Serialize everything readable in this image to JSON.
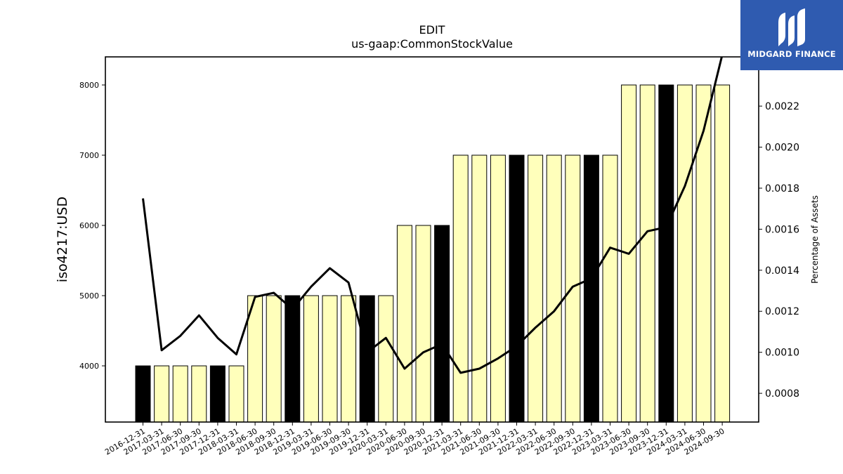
{
  "chart_data": {
    "type": "bar",
    "title": "EDIT",
    "subtitle": "us-gaap:CommonStockValue",
    "ylabel": "iso4217:USD",
    "y2label": "Percentage of Assets",
    "ylim": [
      3200,
      8400
    ],
    "y2lim": [
      0.00066,
      0.00244
    ],
    "yticks": [
      4000,
      5000,
      6000,
      7000,
      8000
    ],
    "y2ticks": [
      "0.0008",
      "0.0010",
      "0.0012",
      "0.0014",
      "0.0016",
      "0.0018",
      "0.0020",
      "0.0022"
    ],
    "categories": [
      "2016-12-31",
      "2017-03-31",
      "2017-06-30",
      "2017-09-30",
      "2017-12-31",
      "2018-03-31",
      "2018-06-30",
      "2018-09-30",
      "2018-12-31",
      "2019-03-31",
      "2019-06-30",
      "2019-09-30",
      "2019-12-31",
      "2020-03-31",
      "2020-06-30",
      "2020-09-30",
      "2020-12-31",
      "2021-03-31",
      "2021-06-30",
      "2021-09-30",
      "2021-12-31",
      "2022-03-31",
      "2022-06-30",
      "2022-09-30",
      "2022-12-31",
      "2023-03-31",
      "2023-06-30",
      "2023-09-30",
      "2023-12-31",
      "2024-03-31",
      "2024-06-30",
      "2024-09-30"
    ],
    "series": [
      {
        "values": [
          4000,
          4000,
          4000,
          4000,
          4000,
          4000,
          5000,
          5000,
          5000,
          5000,
          5000,
          5000,
          5000,
          5000,
          6000,
          6000,
          6000,
          7000,
          7000,
          7000,
          7000,
          7000,
          7000,
          7000,
          7000,
          7000,
          8000,
          8000,
          8000,
          8000,
          8000,
          8000
        ],
        "annual": [
          true,
          false,
          false,
          false,
          true,
          false,
          false,
          false,
          true,
          false,
          false,
          false,
          true,
          false,
          false,
          false,
          true,
          false,
          false,
          false,
          true,
          false,
          false,
          false,
          true,
          false,
          false,
          false,
          true,
          false,
          false,
          false
        ]
      },
      {
        "axis": "secondary",
        "values": [
          0.00175,
          0.00101,
          0.00108,
          0.00118,
          0.00107,
          0.00099,
          0.00127,
          0.00129,
          0.00121,
          0.00132,
          0.00141,
          0.00134,
          0.001,
          0.00107,
          0.00092,
          0.001,
          0.00104,
          0.0009,
          0.00092,
          0.00097,
          0.00103,
          0.00112,
          0.0012,
          0.00132,
          0.00136,
          0.00151,
          0.00148,
          0.00159,
          0.00161,
          0.00181,
          0.00208,
          0.00245
        ]
      }
    ],
    "colors": {
      "quarter_bar": "#ffffbb",
      "annual_bar": "#000000",
      "line": "#000000",
      "bar_edge": "#000000"
    }
  },
  "logo": {
    "text": "MIDGARD FINANCE",
    "bg": "#2f5bb0"
  }
}
